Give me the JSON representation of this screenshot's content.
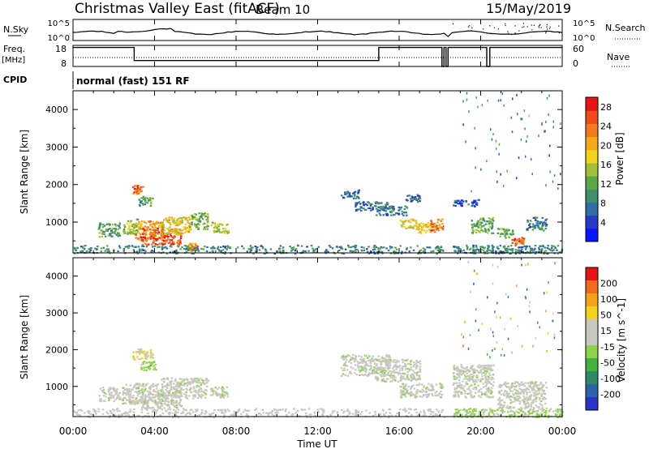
{
  "header": {
    "title": "Christmas Valley East (fitACF)",
    "beam": "Beam 10",
    "date": "15/May/2019"
  },
  "status_panels": {
    "nsky_label": "N.Sky",
    "nsearch_label": "N.Search",
    "log_top_tick": "10^5",
    "log_bottom_tick": "10^0",
    "freq_label": "Freq.",
    "freq_unit": "[MHz]",
    "freq_ticks": [
      "18",
      "8"
    ],
    "nave_label": "Nave",
    "nave_ticks": [
      "60",
      "0"
    ],
    "cpid_label": "CPID",
    "cpid_text": "normal (fast) 151 RF"
  },
  "chart_data": [
    {
      "type": "heatmap",
      "name": "power",
      "ylabel": "Slant Range [km]",
      "y_ticks": [
        "1000",
        "2000",
        "3000",
        "4000"
      ],
      "y_tick_values": [
        1000,
        2000,
        3000,
        4000
      ],
      "ylim": [
        180,
        4500
      ],
      "xlim": [
        0,
        24
      ],
      "colorbar": {
        "label": "Power [dB]",
        "ticks": [
          "4",
          "8",
          "12",
          "16",
          "20",
          "24",
          "28"
        ],
        "tick_values": [
          4,
          8,
          12,
          16,
          20,
          24,
          28
        ],
        "range": [
          0,
          30
        ],
        "colors": [
          "#0a14ff",
          "#2838c8",
          "#2f6ea8",
          "#3f8f6c",
          "#5aa845",
          "#a0c234",
          "#f2d21a",
          "#f7a71a",
          "#f47a1d",
          "#ef4a1a",
          "#e81414"
        ]
      },
      "features": [
        {
          "t": [
            2.9,
            3.4
          ],
          "r": [
            1750,
            2000
          ],
          "v": 24
        },
        {
          "t": [
            3.2,
            3.9
          ],
          "r": [
            1450,
            1700
          ],
          "v": 11
        },
        {
          "t": [
            1.2,
            2.3
          ],
          "r": [
            620,
            1000
          ],
          "v": 11
        },
        {
          "t": [
            2.4,
            3.2
          ],
          "r": [
            700,
            1100
          ],
          "v": 14
        },
        {
          "t": [
            3.0,
            4.4
          ],
          "r": [
            550,
            1050
          ],
          "v": 21
        },
        {
          "t": [
            3.3,
            5.3
          ],
          "r": [
            420,
            850
          ],
          "v": 26
        },
        {
          "t": [
            4.3,
            5.8
          ],
          "r": [
            680,
            1150
          ],
          "v": 18
        },
        {
          "t": [
            5.7,
            6.6
          ],
          "r": [
            820,
            1260
          ],
          "v": 14
        },
        {
          "t": [
            5.6,
            6.1
          ],
          "r": [
            250,
            450
          ],
          "v": 22
        },
        {
          "t": [
            6.7,
            7.6
          ],
          "r": [
            720,
            1010
          ],
          "v": 15
        },
        {
          "t": [
            13.1,
            14.0
          ],
          "r": [
            1650,
            1880
          ],
          "v": 7
        },
        {
          "t": [
            13.8,
            15.5
          ],
          "r": [
            1320,
            1560
          ],
          "v": 7
        },
        {
          "t": [
            14.8,
            16.4
          ],
          "r": [
            1200,
            1450
          ],
          "v": 8
        },
        {
          "t": [
            16.3,
            17.0
          ],
          "r": [
            1560,
            1760
          ],
          "v": 7
        },
        {
          "t": [
            16.0,
            16.9
          ],
          "r": [
            850,
            1100
          ],
          "v": 17
        },
        {
          "t": [
            16.8,
            17.9
          ],
          "r": [
            720,
            1000
          ],
          "v": 20
        },
        {
          "t": [
            17.5,
            18.2
          ],
          "r": [
            780,
            1100
          ],
          "v": 24
        },
        {
          "t": [
            18.6,
            19.9
          ],
          "r": [
            1430,
            1620
          ],
          "v": 6
        },
        {
          "t": [
            19.5,
            20.6
          ],
          "r": [
            720,
            1150
          ],
          "v": 12
        },
        {
          "t": [
            20.8,
            21.6
          ],
          "r": [
            600,
            850
          ],
          "v": 13
        },
        {
          "t": [
            21.5,
            22.1
          ],
          "r": [
            420,
            620
          ],
          "v": 25
        },
        {
          "t": [
            22.2,
            23.2
          ],
          "r": [
            800,
            1150
          ],
          "v": 8
        },
        {
          "t": [
            0.0,
            18.2
          ],
          "r": [
            180,
            400
          ],
          "v": 9
        },
        {
          "t": [
            18.6,
            24.0
          ],
          "r": [
            180,
            400
          ],
          "v": 9
        }
      ]
    },
    {
      "type": "heatmap",
      "name": "velocity",
      "ylabel": "Slant Range [km]",
      "y_ticks": [
        "1000",
        "2000",
        "3000",
        "4000"
      ],
      "y_tick_values": [
        1000,
        2000,
        3000,
        4000
      ],
      "ylim": [
        180,
        4500
      ],
      "xlim": [
        0,
        24
      ],
      "colorbar": {
        "label": "Velocity [m s^-1]",
        "ticks": [
          "200",
          "100",
          "50",
          "15",
          "-15",
          "-50",
          "-100",
          "-200"
        ],
        "range": [
          -250,
          250
        ],
        "colors": [
          "#2c34c8",
          "#2c62a8",
          "#2f8a68",
          "#44b040",
          "#8ed448",
          "#c8c8c0",
          "#c8c8c0",
          "#f2d21a",
          "#f7a31a",
          "#f06c1a",
          "#e81414"
        ]
      },
      "features": [
        {
          "t": [
            2.9,
            3.9
          ],
          "r": [
            1750,
            2050
          ],
          "v": 70
        },
        {
          "t": [
            3.3,
            4.1
          ],
          "r": [
            1450,
            1700
          ],
          "v": -45
        },
        {
          "t": [
            1.2,
            2.3
          ],
          "r": [
            620,
            1000
          ],
          "v": 0
        },
        {
          "t": [
            2.4,
            4.4
          ],
          "r": [
            550,
            1100
          ],
          "v": 0
        },
        {
          "t": [
            2.8,
            3.6
          ],
          "r": [
            520,
            700
          ],
          "v": 40
        },
        {
          "t": [
            3.3,
            5.3
          ],
          "r": [
            420,
            850
          ],
          "v": 0
        },
        {
          "t": [
            4.3,
            6.6
          ],
          "r": [
            680,
            1250
          ],
          "v": 0
        },
        {
          "t": [
            6.7,
            7.6
          ],
          "r": [
            720,
            1010
          ],
          "v": 0
        },
        {
          "t": [
            13.1,
            15.5
          ],
          "r": [
            1300,
            1880
          ],
          "v": 0
        },
        {
          "t": [
            14.8,
            17.0
          ],
          "r": [
            1150,
            1760
          ],
          "v": 0
        },
        {
          "t": [
            16.0,
            18.2
          ],
          "r": [
            720,
            1100
          ],
          "v": 0
        },
        {
          "t": [
            18.6,
            20.6
          ],
          "r": [
            720,
            1620
          ],
          "v": 0
        },
        {
          "t": [
            20.8,
            23.2
          ],
          "r": [
            420,
            1150
          ],
          "v": 0
        },
        {
          "t": [
            0.0,
            18.2
          ],
          "r": [
            180,
            420
          ],
          "v": 35
        },
        {
          "t": [
            18.6,
            24.0
          ],
          "r": [
            180,
            420
          ],
          "v": -30
        }
      ]
    }
  ],
  "time_axis": {
    "label": "Time UT",
    "ticks": [
      "00:00",
      "04:00",
      "08:00",
      "12:00",
      "16:00",
      "20:00",
      "00:00"
    ],
    "tick_hours": [
      0,
      4,
      8,
      12,
      16,
      20,
      24
    ]
  }
}
